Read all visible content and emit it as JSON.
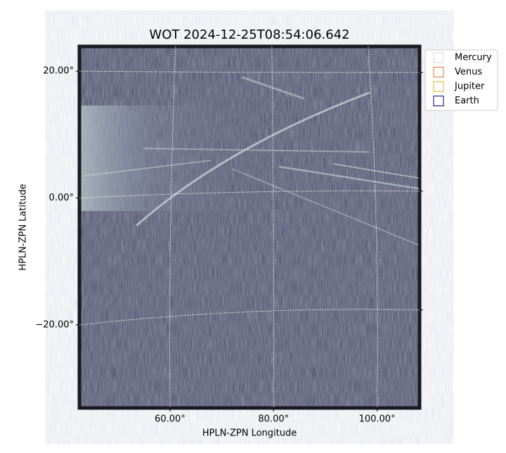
{
  "chart_data": {
    "type": "image",
    "title": "WOT 2024-12-25T08:54:06.642",
    "xlabel": "HPLN-ZPN Longitude",
    "ylabel": "HPLN-ZPN Latitude",
    "xlim": [
      42.5,
      108.2
    ],
    "ylim": [
      -33.1,
      23.9
    ],
    "xticks": [
      {
        "value": 60,
        "label": "60.00°"
      },
      {
        "value": 80,
        "label": "80.00°"
      },
      {
        "value": 100,
        "label": "100.00°"
      }
    ],
    "yticks": [
      {
        "value": -20,
        "label": "−20.00°"
      },
      {
        "value": 0,
        "label": "0.00°"
      },
      {
        "value": 20,
        "label": "20.00°"
      }
    ],
    "grid": true,
    "legend_position": "outside upper right",
    "series": [
      {
        "name": "Mercury",
        "color": "#d9d9d9"
      },
      {
        "name": "Venus",
        "color": "#e0703a"
      },
      {
        "name": "Jupiter",
        "color": "#e0b020"
      },
      {
        "name": "Earth",
        "color": "#000080"
      }
    ]
  }
}
